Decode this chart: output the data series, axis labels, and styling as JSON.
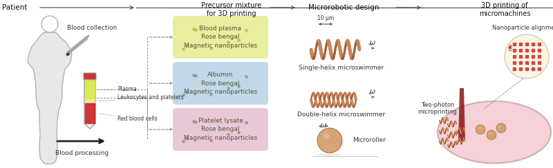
{
  "bg_color": "#ffffff",
  "header_arrow_color": "#444444",
  "box_colors": {
    "plasma": "#e8eda0",
    "albumin": "#c0d8e8",
    "platelet": "#e8c8d8"
  },
  "section_labels": {
    "patient": "Patient",
    "precursor": "Precursor mixture\nfor 3D printing",
    "microrobotic": "Microrobotic design",
    "printing": "3D printing of\nmicromachines"
  },
  "blood_labels": {
    "collection": "Blood collection",
    "plasma": "Plasma",
    "leukocytes": "Leukocytes and platelets",
    "rbc": "Red blood cells",
    "processing": "Blood processing"
  },
  "box_texts": {
    "plasma_box": "Blood plasma\nRose bengal\nMagnetic nanoparticles",
    "albumin_box": "Albumin\nRose bengal\nMagnetic nanoparticles",
    "platelet_box": "Platelet lysate\nRose bengal\nMagnetic nanoparticles"
  },
  "device_labels": {
    "scale": "10 μm",
    "single_helix": "Single-helix microswimmer",
    "double_helix": "Double-helix microswimmer",
    "microroller": "Microroller",
    "nanoparticle": "Nanoparticle alignment",
    "two_photon": "Two-photon\nmicroprinting"
  },
  "helix_color": "#c8845a",
  "helix_dark": "#9a5530",
  "body_color": "#cccccc",
  "roller_color": "#d4a882",
  "arrow_color": "#333333",
  "dashed_color": "#888888",
  "dot_color": "#aaaaaa",
  "platform_color": "#f2c0c8",
  "laser_color": "#8b1515",
  "nano_bg": "#faf5e0",
  "nano_dot_color": "#cc3333"
}
